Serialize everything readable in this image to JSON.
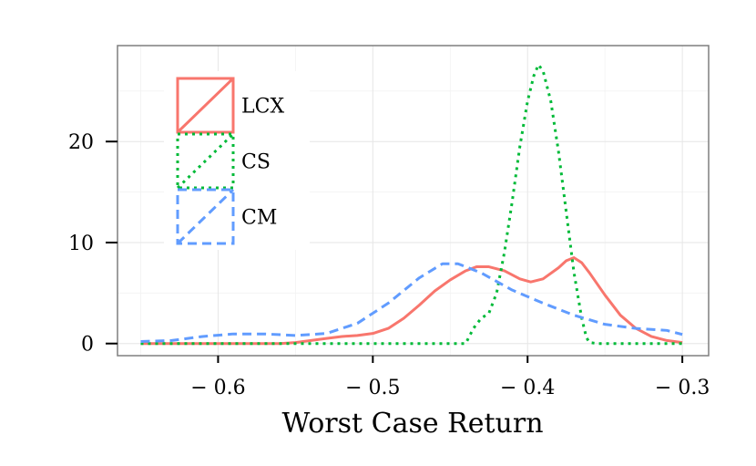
{
  "chart_data": {
    "type": "area",
    "title": "",
    "xlabel": "Worst Case Return",
    "ylabel": "",
    "xlim": [
      -0.665,
      -0.283
    ],
    "ylim": [
      -1.2,
      29.5
    ],
    "x_ticks": [
      {
        "value": -0.6,
        "label": "− 0.6"
      },
      {
        "value": -0.5,
        "label": "− 0.5"
      },
      {
        "value": -0.4,
        "label": "− 0.4"
      },
      {
        "value": -0.3,
        "label": "− 0.3"
      }
    ],
    "y_ticks": [
      {
        "value": 0,
        "label": "0"
      },
      {
        "value": 10,
        "label": "10"
      },
      {
        "value": 20,
        "label": "20"
      }
    ],
    "grid": true,
    "legend_position": "top-left",
    "series": [
      {
        "name": "LCX",
        "color": "#F8766D",
        "linestyle": "solid",
        "points": [
          [
            -0.65,
            0
          ],
          [
            -0.56,
            0
          ],
          [
            -0.55,
            0.1
          ],
          [
            -0.54,
            0.3
          ],
          [
            -0.53,
            0.5
          ],
          [
            -0.52,
            0.7
          ],
          [
            -0.51,
            0.8
          ],
          [
            -0.5,
            1.0
          ],
          [
            -0.49,
            1.5
          ],
          [
            -0.48,
            2.5
          ],
          [
            -0.47,
            3.8
          ],
          [
            -0.46,
            5.2
          ],
          [
            -0.45,
            6.3
          ],
          [
            -0.44,
            7.2
          ],
          [
            -0.433,
            7.6
          ],
          [
            -0.425,
            7.6
          ],
          [
            -0.415,
            7.2
          ],
          [
            -0.405,
            6.4
          ],
          [
            -0.398,
            6.1
          ],
          [
            -0.39,
            6.4
          ],
          [
            -0.38,
            7.5
          ],
          [
            -0.375,
            8.2
          ],
          [
            -0.37,
            8.5
          ],
          [
            -0.365,
            8.0
          ],
          [
            -0.36,
            7.0
          ],
          [
            -0.35,
            4.8
          ],
          [
            -0.34,
            2.8
          ],
          [
            -0.33,
            1.5
          ],
          [
            -0.32,
            0.7
          ],
          [
            -0.31,
            0.3
          ],
          [
            -0.3,
            0.1
          ]
        ]
      },
      {
        "name": "CS",
        "color": "#00BA38",
        "linestyle": "dotted",
        "points": [
          [
            -0.65,
            0
          ],
          [
            -0.44,
            0
          ],
          [
            -0.435,
            1.5
          ],
          [
            -0.43,
            2.5
          ],
          [
            -0.425,
            3.0
          ],
          [
            -0.42,
            5.0
          ],
          [
            -0.415,
            9.0
          ],
          [
            -0.41,
            14.0
          ],
          [
            -0.405,
            19.5
          ],
          [
            -0.4,
            24.0
          ],
          [
            -0.396,
            26.5
          ],
          [
            -0.393,
            27.6
          ],
          [
            -0.39,
            27.0
          ],
          [
            -0.385,
            24.0
          ],
          [
            -0.38,
            19.0
          ],
          [
            -0.375,
            13.0
          ],
          [
            -0.37,
            7.0
          ],
          [
            -0.365,
            2.5
          ],
          [
            -0.362,
            0.6
          ],
          [
            -0.36,
            0.1
          ],
          [
            -0.355,
            0
          ],
          [
            -0.3,
            0
          ]
        ]
      },
      {
        "name": "CM",
        "color": "#619CFF",
        "linestyle": "dashed",
        "points": [
          [
            -0.65,
            0.2
          ],
          [
            -0.63,
            0.3
          ],
          [
            -0.61,
            0.7
          ],
          [
            -0.59,
            0.95
          ],
          [
            -0.57,
            0.95
          ],
          [
            -0.55,
            0.8
          ],
          [
            -0.53,
            1.0
          ],
          [
            -0.51,
            2.0
          ],
          [
            -0.49,
            4.0
          ],
          [
            -0.47,
            6.5
          ],
          [
            -0.455,
            7.9
          ],
          [
            -0.445,
            7.9
          ],
          [
            -0.43,
            7.0
          ],
          [
            -0.41,
            5.3
          ],
          [
            -0.39,
            4.0
          ],
          [
            -0.37,
            2.8
          ],
          [
            -0.35,
            1.9
          ],
          [
            -0.33,
            1.5
          ],
          [
            -0.31,
            1.3
          ],
          [
            -0.3,
            0.9
          ]
        ]
      }
    ]
  }
}
